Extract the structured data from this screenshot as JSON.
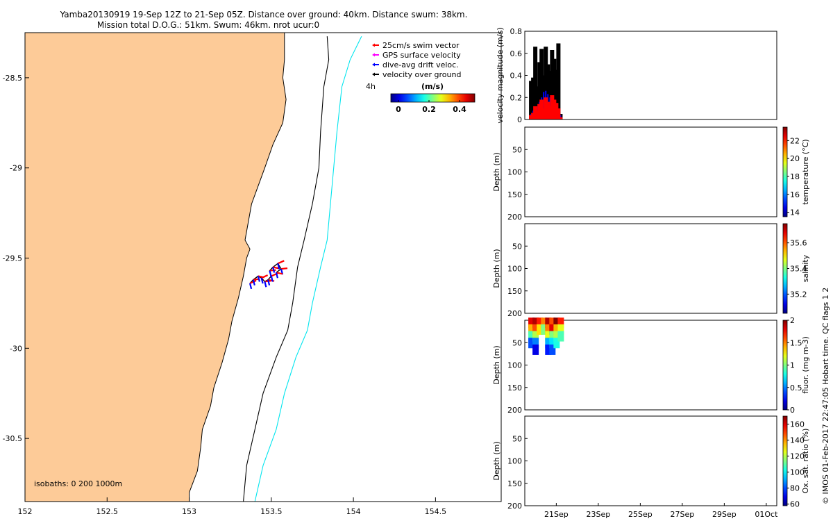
{
  "title": {
    "line1": "Yamba20130919 19-Sep 12Z to 21-Sep 05Z. Distance over ground: 40km. Distance swum: 38km.",
    "line2": "Mission total D.O.G.: 51km. Swum: 46km. nrot ucur:0"
  },
  "credit": "© IMOS 01-Feb-2017 22:47:05 Hobart time. QC flags 1  2",
  "chart_data": [
    {
      "id": "track-map",
      "type": "scatter",
      "xlim": [
        152,
        154.9
      ],
      "ylim": [
        -30.85,
        -28.25
      ],
      "x_ticks": [
        152,
        152.5,
        153,
        153.5,
        154,
        154.5
      ],
      "x_tick_labels": [
        "152",
        "152.5",
        "153",
        "153.5",
        "154",
        "154.5"
      ],
      "y_ticks": [
        -28.5,
        -29,
        -29.5,
        -30,
        -30.5
      ],
      "y_tick_labels": [
        "-28.5",
        "-29",
        "-29.5",
        "-30",
        "-30.5"
      ],
      "land_color": "#fdcb98",
      "coastline": [
        [
          153.58,
          -28.25
        ],
        [
          153.58,
          -28.4
        ],
        [
          153.57,
          -28.5
        ],
        [
          153.59,
          -28.62
        ],
        [
          153.57,
          -28.75
        ],
        [
          153.51,
          -28.87
        ],
        [
          153.46,
          -29.0
        ],
        [
          153.42,
          -29.1
        ],
        [
          153.38,
          -29.2
        ],
        [
          153.36,
          -29.3
        ],
        [
          153.34,
          -29.4
        ],
        [
          153.37,
          -29.45
        ],
        [
          153.35,
          -29.5
        ],
        [
          153.33,
          -29.6
        ],
        [
          153.3,
          -29.72
        ],
        [
          153.26,
          -29.85
        ],
        [
          153.24,
          -29.95
        ],
        [
          153.2,
          -30.08
        ],
        [
          153.15,
          -30.22
        ],
        [
          153.13,
          -30.32
        ],
        [
          153.08,
          -30.45
        ],
        [
          153.07,
          -30.55
        ],
        [
          153.05,
          -30.68
        ],
        [
          153.0,
          -30.8
        ],
        [
          153.0,
          -30.85
        ]
      ],
      "isobaths": [
        {
          "depth": 200,
          "color": "#000000",
          "points": [
            [
              153.84,
              -28.27
            ],
            [
              153.85,
              -28.4
            ],
            [
              153.82,
              -28.55
            ],
            [
              153.8,
              -28.8
            ],
            [
              153.79,
              -29.0
            ],
            [
              153.75,
              -29.2
            ],
            [
              153.7,
              -29.4
            ],
            [
              153.66,
              -29.55
            ],
            [
              153.63,
              -29.75
            ],
            [
              153.6,
              -29.9
            ],
            [
              153.53,
              -30.05
            ],
            [
              153.45,
              -30.25
            ],
            [
              153.4,
              -30.45
            ],
            [
              153.35,
              -30.65
            ],
            [
              153.33,
              -30.85
            ]
          ]
        },
        {
          "depth": 1000,
          "color": "#00e5ee",
          "points": [
            [
              154.05,
              -28.27
            ],
            [
              153.98,
              -28.4
            ],
            [
              153.93,
              -28.55
            ],
            [
              153.9,
              -28.8
            ],
            [
              153.88,
              -29.0
            ],
            [
              153.86,
              -29.2
            ],
            [
              153.84,
              -29.4
            ],
            [
              153.8,
              -29.55
            ],
            [
              153.75,
              -29.75
            ],
            [
              153.72,
              -29.9
            ],
            [
              153.65,
              -30.05
            ],
            [
              153.58,
              -30.25
            ],
            [
              153.53,
              -30.45
            ],
            [
              153.45,
              -30.65
            ],
            [
              153.4,
              -30.85
            ]
          ]
        }
      ],
      "track": [
        [
          153.37,
          -29.64
        ],
        [
          153.39,
          -29.62
        ],
        [
          153.42,
          -29.6
        ],
        [
          153.44,
          -29.61
        ],
        [
          153.46,
          -29.63
        ],
        [
          153.48,
          -29.62
        ],
        [
          153.5,
          -29.6
        ],
        [
          153.49,
          -29.57
        ],
        [
          153.51,
          -29.55
        ],
        [
          153.54,
          -29.53
        ],
        [
          153.56,
          -29.56
        ],
        [
          153.53,
          -29.58
        ]
      ],
      "legend": [
        {
          "label": "25cm/s swim vector",
          "color": "#ff0000"
        },
        {
          "label": "GPS surface velocity",
          "color": "#ff00ff"
        },
        {
          "label": "dive-avg drift veloc.",
          "color": "#0000ff"
        },
        {
          "label": "velocity over ground",
          "color": "#000000"
        }
      ],
      "colorbar": {
        "label": "(m/s)",
        "time_marker": "4h",
        "tick_values": [
          0,
          0.2,
          0.4
        ],
        "tick_labels": [
          "0",
          "0.2",
          "0.4"
        ],
        "range": [
          -0.05,
          0.5
        ]
      },
      "isobath_note": "isobaths: 0   200  1000m"
    },
    {
      "id": "velocity-panel",
      "type": "bar",
      "ylabel": "velocity magnitude (m/s)",
      "ylim": [
        0,
        0.8
      ],
      "y_ticks": [
        0,
        0.2,
        0.4,
        0.6,
        0.8
      ],
      "y_tick_labels": [
        "0",
        "0.2",
        "0.4",
        "0.6",
        "0.8"
      ],
      "x_day_range": [
        19.5,
        31.5
      ],
      "series": [
        {
          "color": "#000000",
          "x": [
            19.8,
            19.9,
            20.0,
            20.1,
            20.2,
            20.3,
            20.4,
            20.5,
            20.6,
            20.7,
            20.8,
            20.9,
            21.0,
            21.1,
            21.2
          ],
          "values": [
            0.35,
            0.38,
            0.66,
            0.3,
            0.52,
            0.64,
            0.4,
            0.66,
            0.5,
            0.44,
            0.63,
            0.55,
            0.45,
            0.69,
            0.05
          ]
        },
        {
          "color": "#0000ff",
          "x": [
            19.8,
            19.9,
            20.0,
            20.1,
            20.2,
            20.3,
            20.4,
            20.5,
            20.6,
            20.7,
            20.8,
            20.9,
            21.0,
            21.1,
            21.2
          ],
          "values": [
            0.05,
            0.08,
            0.1,
            0.12,
            0.16,
            0.2,
            0.25,
            0.26,
            0.23,
            0.2,
            0.18,
            0.14,
            0.12,
            0.1,
            0.04
          ]
        },
        {
          "color": "#ff0000",
          "x": [
            19.8,
            19.9,
            20.0,
            20.1,
            20.2,
            20.3,
            20.4,
            20.5,
            20.6,
            20.7,
            20.8,
            20.9,
            21.0,
            21.1,
            21.2
          ],
          "values": [
            0.04,
            0.06,
            0.12,
            0.08,
            0.14,
            0.18,
            0.1,
            0.2,
            0.16,
            0.12,
            0.22,
            0.18,
            0.15,
            0.1,
            0.02
          ]
        }
      ]
    },
    {
      "id": "temperature-panel",
      "type": "heatmap",
      "ylabel": "Depth (m)",
      "ylim": [
        200,
        0
      ],
      "y_ticks": [
        0,
        50,
        100,
        150,
        200
      ],
      "y_tick_labels": [
        "",
        "50",
        "100",
        "150",
        "200"
      ],
      "colorbar": {
        "label": "temperature (°C)",
        "range": [
          13.5,
          23.5
        ],
        "tick_values": [
          14,
          16,
          18,
          20,
          22
        ],
        "tick_labels": [
          "14",
          "16",
          "18",
          "20",
          "22"
        ]
      },
      "cells": []
    },
    {
      "id": "salinity-panel",
      "type": "heatmap",
      "ylabel": "Depth (m)",
      "ylim": [
        200,
        0
      ],
      "y_ticks": [
        0,
        50,
        100,
        150,
        200
      ],
      "y_tick_labels": [
        "",
        "50",
        "100",
        "150",
        "200"
      ],
      "colorbar": {
        "label": "salinity",
        "range": [
          35.05,
          35.75
        ],
        "tick_values": [
          35.2,
          35.4,
          35.6
        ],
        "tick_labels": [
          "35.2",
          "35.4",
          "35.6"
        ]
      },
      "cells": []
    },
    {
      "id": "fluorescence-panel",
      "type": "heatmap",
      "ylabel": "Depth (m)",
      "ylim": [
        200,
        0
      ],
      "y_ticks": [
        0,
        50,
        100,
        150,
        200
      ],
      "y_tick_labels": [
        "",
        "50",
        "100",
        "150",
        "200"
      ],
      "colorbar": {
        "label": "fluor. (mg m-3)",
        "range": [
          0,
          2
        ],
        "tick_values": [
          0,
          0.5,
          1,
          1.5,
          2
        ],
        "tick_labels": [
          "0",
          "0.5",
          "1",
          "1.5",
          "2"
        ]
      },
      "cells": [
        {
          "x": 19.8,
          "depth": 5,
          "value": 1.8
        },
        {
          "x": 19.8,
          "depth": 20,
          "value": 1.4
        },
        {
          "x": 19.8,
          "depth": 35,
          "value": 0.9
        },
        {
          "x": 19.8,
          "depth": 50,
          "value": 0.4
        },
        {
          "x": 20.0,
          "depth": 5,
          "value": 1.9
        },
        {
          "x": 20.0,
          "depth": 20,
          "value": 1.6
        },
        {
          "x": 20.0,
          "depth": 35,
          "value": 1.1
        },
        {
          "x": 20.0,
          "depth": 50,
          "value": 0.5
        },
        {
          "x": 20.0,
          "depth": 65,
          "value": 0.2
        },
        {
          "x": 20.2,
          "depth": 5,
          "value": 1.7
        },
        {
          "x": 20.2,
          "depth": 20,
          "value": 1.3
        },
        {
          "x": 20.4,
          "depth": 5,
          "value": 1.5
        },
        {
          "x": 20.4,
          "depth": 20,
          "value": 1.0
        },
        {
          "x": 20.6,
          "depth": 5,
          "value": 1.9
        },
        {
          "x": 20.6,
          "depth": 20,
          "value": 1.5
        },
        {
          "x": 20.6,
          "depth": 35,
          "value": 1.2
        },
        {
          "x": 20.6,
          "depth": 50,
          "value": 0.6
        },
        {
          "x": 20.6,
          "depth": 65,
          "value": 0.3
        },
        {
          "x": 20.8,
          "depth": 5,
          "value": 1.6
        },
        {
          "x": 20.8,
          "depth": 20,
          "value": 1.8
        },
        {
          "x": 20.8,
          "depth": 35,
          "value": 1.0
        },
        {
          "x": 20.8,
          "depth": 50,
          "value": 0.7
        },
        {
          "x": 20.8,
          "depth": 65,
          "value": 0.4
        },
        {
          "x": 21.0,
          "depth": 5,
          "value": 2.0
        },
        {
          "x": 21.0,
          "depth": 20,
          "value": 1.4
        },
        {
          "x": 21.0,
          "depth": 35,
          "value": 1.1
        },
        {
          "x": 21.0,
          "depth": 50,
          "value": 0.8
        },
        {
          "x": 21.2,
          "depth": 5,
          "value": 1.7
        },
        {
          "x": 21.2,
          "depth": 20,
          "value": 1.2
        },
        {
          "x": 21.2,
          "depth": 35,
          "value": 0.9
        }
      ]
    },
    {
      "id": "oxygen-panel",
      "type": "heatmap",
      "ylabel": "Depth (m)",
      "ylim": [
        200,
        0
      ],
      "y_ticks": [
        0,
        50,
        100,
        150,
        200
      ],
      "y_tick_labels": [
        "",
        "50",
        "100",
        "150",
        "200"
      ],
      "x_ticks": [
        21,
        23,
        25,
        27,
        29,
        31
      ],
      "x_tick_labels": [
        "21Sep",
        "23Sep",
        "25Sep",
        "27Sep",
        "29Sep",
        "01Oct"
      ],
      "colorbar": {
        "label": "Ox. sat. ratio (%)",
        "range": [
          58,
          170
        ],
        "tick_values": [
          60,
          80,
          100,
          120,
          140,
          160
        ],
        "tick_labels": [
          "60",
          "80",
          "100",
          "120",
          "140",
          "160"
        ]
      },
      "cells": []
    }
  ]
}
